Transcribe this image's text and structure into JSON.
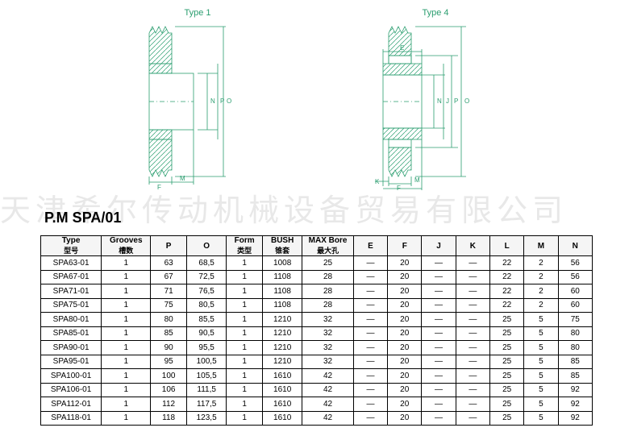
{
  "watermark": "天津希尔传动机械设备贸易有限公司",
  "diagram_labels": {
    "type1": "Type 1",
    "type4": "Type 4"
  },
  "diagram_style": {
    "stroke_color": "#2a9d6f",
    "stroke_width": 0.8,
    "hatch_color": "#2a9d6f",
    "label_color": "#2a9d6f"
  },
  "title": "P.M SPA/01",
  "table": {
    "header_bg": "#f5f5f5",
    "border_color": "#000000",
    "columns": [
      {
        "main": "Type",
        "sub": "型号",
        "class": "col-type"
      },
      {
        "main": "Grooves",
        "sub": "槽数",
        "class": "col-gr"
      },
      {
        "main": "P",
        "sub": "",
        "class": "col-p"
      },
      {
        "main": "O",
        "sub": "",
        "class": "col-o"
      },
      {
        "main": "Form",
        "sub": "类型",
        "class": "col-form"
      },
      {
        "main": "BUSH",
        "sub": "锥套",
        "class": "col-bush"
      },
      {
        "main": "MAX Bore",
        "sub": "最大孔",
        "class": "col-bore"
      },
      {
        "main": "E",
        "sub": "",
        "class": "col-std"
      },
      {
        "main": "F",
        "sub": "",
        "class": "col-std"
      },
      {
        "main": "J",
        "sub": "",
        "class": "col-std"
      },
      {
        "main": "K",
        "sub": "",
        "class": "col-std"
      },
      {
        "main": "L",
        "sub": "",
        "class": "col-std"
      },
      {
        "main": "M",
        "sub": "",
        "class": "col-std"
      },
      {
        "main": "N",
        "sub": "",
        "class": "col-std"
      }
    ],
    "rows": [
      [
        "SPA63-01",
        "1",
        "63",
        "68,5",
        "1",
        "1008",
        "25",
        "—",
        "20",
        "—",
        "—",
        "22",
        "2",
        "56"
      ],
      [
        "SPA67-01",
        "1",
        "67",
        "72,5",
        "1",
        "1108",
        "28",
        "—",
        "20",
        "—",
        "—",
        "22",
        "2",
        "56"
      ],
      [
        "SPA71-01",
        "1",
        "71",
        "76,5",
        "1",
        "1108",
        "28",
        "—",
        "20",
        "—",
        "—",
        "22",
        "2",
        "60"
      ],
      [
        "SPA75-01",
        "1",
        "75",
        "80,5",
        "1",
        "1108",
        "28",
        "—",
        "20",
        "—",
        "—",
        "22",
        "2",
        "60"
      ],
      [
        "SPA80-01",
        "1",
        "80",
        "85,5",
        "1",
        "1210",
        "32",
        "—",
        "20",
        "—",
        "—",
        "25",
        "5",
        "75"
      ],
      [
        "SPA85-01",
        "1",
        "85",
        "90,5",
        "1",
        "1210",
        "32",
        "—",
        "20",
        "—",
        "—",
        "25",
        "5",
        "80"
      ],
      [
        "SPA90-01",
        "1",
        "90",
        "95,5",
        "1",
        "1210",
        "32",
        "—",
        "20",
        "—",
        "—",
        "25",
        "5",
        "80"
      ],
      [
        "SPA95-01",
        "1",
        "95",
        "100,5",
        "1",
        "1210",
        "32",
        "—",
        "20",
        "—",
        "—",
        "25",
        "5",
        "85"
      ],
      [
        "SPA100-01",
        "1",
        "100",
        "105,5",
        "1",
        "1610",
        "42",
        "—",
        "20",
        "—",
        "—",
        "25",
        "5",
        "85"
      ],
      [
        "SPA106-01",
        "1",
        "106",
        "111,5",
        "1",
        "1610",
        "42",
        "—",
        "20",
        "—",
        "—",
        "25",
        "5",
        "92"
      ],
      [
        "SPA112-01",
        "1",
        "112",
        "117,5",
        "1",
        "1610",
        "42",
        "—",
        "20",
        "—",
        "—",
        "25",
        "5",
        "92"
      ],
      [
        "SPA118-01",
        "1",
        "118",
        "123,5",
        "1",
        "1610",
        "42",
        "—",
        "20",
        "—",
        "—",
        "25",
        "5",
        "92"
      ]
    ]
  }
}
